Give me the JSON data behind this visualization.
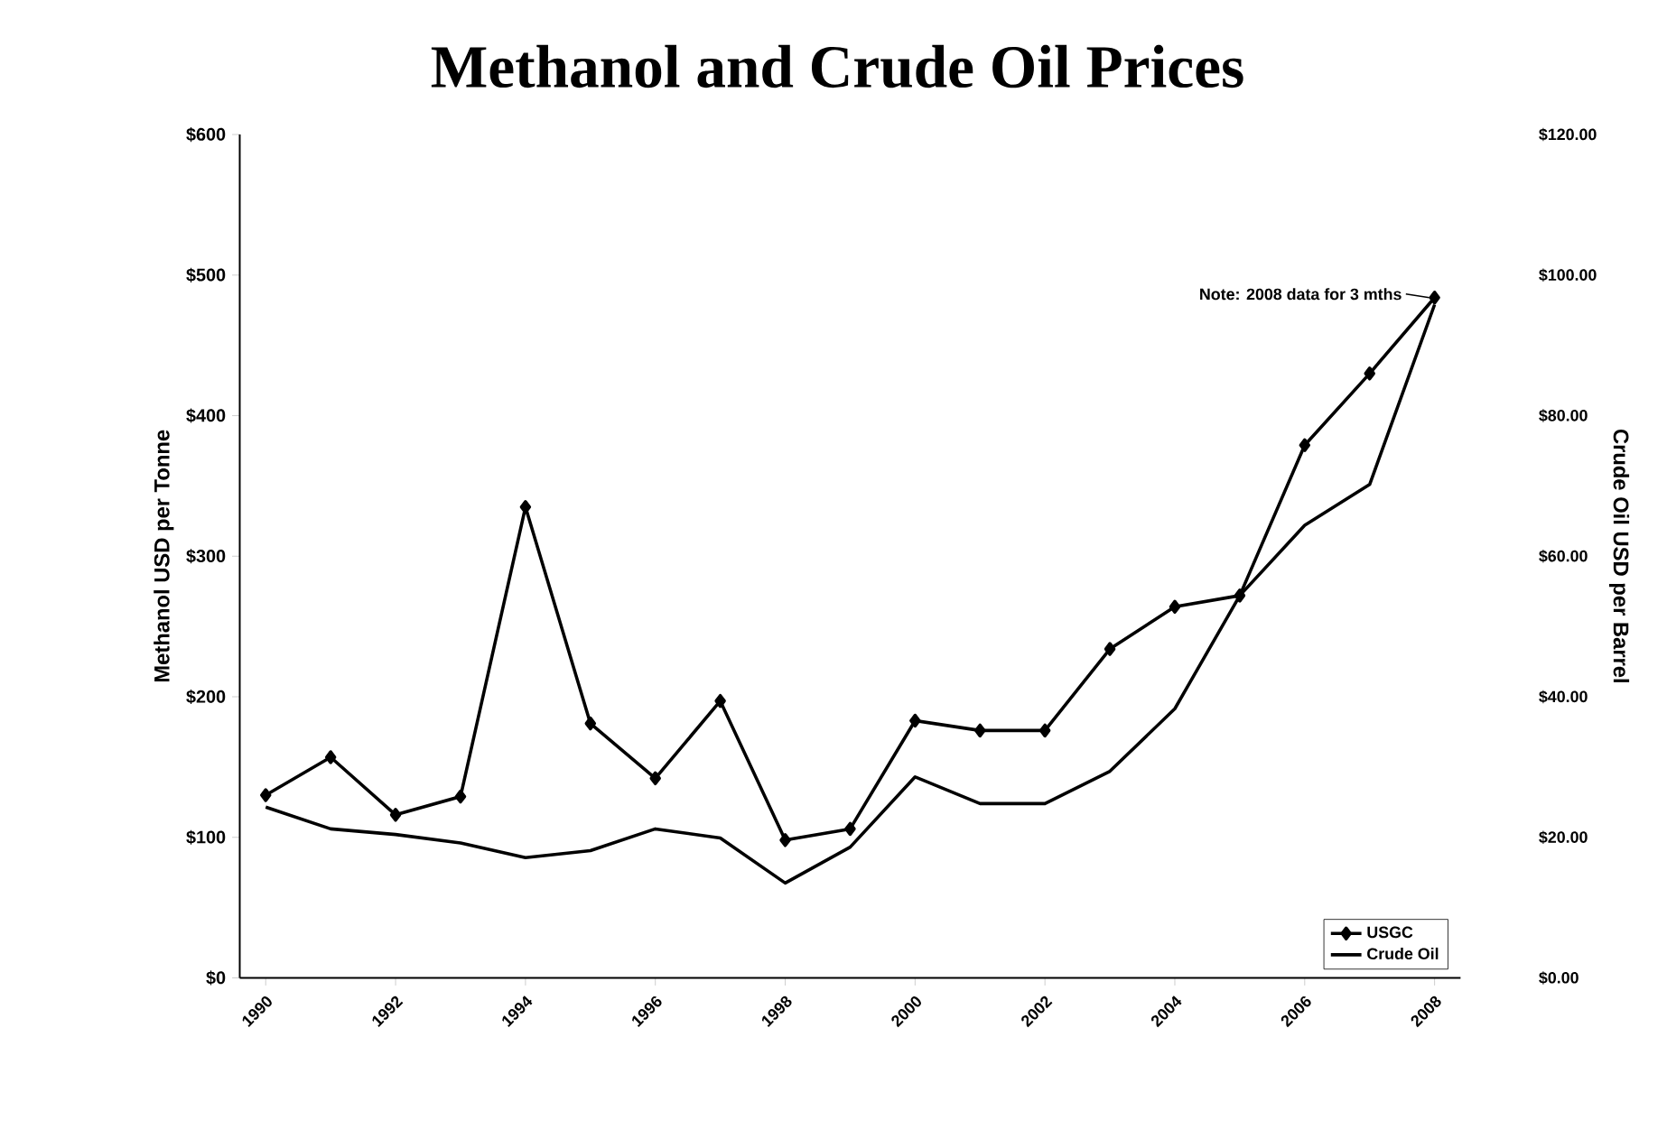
{
  "chart_data": {
    "type": "line",
    "title": "Methanol and Crude Oil Prices",
    "ylabel": "Methanol USD per Tonne",
    "y2label": "Crude Oil USD per Barrel",
    "x": [
      1990,
      1991,
      1992,
      1993,
      1994,
      1995,
      1996,
      1997,
      1998,
      1999,
      2000,
      2001,
      2002,
      2003,
      2004,
      2005,
      2006,
      2007,
      2008
    ],
    "series": [
      {
        "name": "USGC",
        "color": "#000000",
        "marker": "diamond",
        "values": [
          130,
          157,
          116,
          129,
          335,
          181,
          142,
          197,
          98,
          106,
          183,
          176,
          176,
          234,
          264,
          272,
          379,
          430,
          484
        ]
      },
      {
        "name": "Crude Oil",
        "color": "#000000",
        "axis": "y2",
        "values": [
          24.3,
          21.2,
          20.4,
          19.2,
          17.1,
          18.1,
          21.2,
          19.9,
          13.5,
          18.6,
          28.6,
          24.8,
          24.8,
          29.4,
          38.3,
          54.4,
          64.4,
          70.2,
          95.8
        ]
      }
    ],
    "xlim": [
      1989.6,
      2008.4
    ],
    "xticks": [
      1990,
      1992,
      1994,
      1996,
      1998,
      2000,
      2002,
      2004,
      2006,
      2008
    ],
    "ylim": [
      0,
      600
    ],
    "yticks": [
      {
        "value": 0,
        "label": "$0"
      },
      {
        "value": 100,
        "label": "$100"
      },
      {
        "value": 200,
        "label": "$200"
      },
      {
        "value": 300,
        "label": "$300"
      },
      {
        "value": 400,
        "label": "$400"
      },
      {
        "value": 500,
        "label": "$500"
      },
      {
        "value": 600,
        "label": "$600"
      }
    ],
    "y2lim": [
      0,
      120
    ],
    "y2ticks": [
      {
        "value": 0,
        "label": "$0.00"
      },
      {
        "value": 20,
        "label": "$20.00"
      },
      {
        "value": 40,
        "label": "$40.00"
      },
      {
        "value": 60,
        "label": "$60.00"
      },
      {
        "value": 80,
        "label": "$80.00"
      },
      {
        "value": 100,
        "label": "$100.00"
      },
      {
        "value": 120,
        "label": "$120.00"
      }
    ],
    "annotations": [
      {
        "text": "Note: 2008 data for 3 mths",
        "x": 2008,
        "y": 484
      }
    ],
    "legend": "bottom right",
    "grid": false,
    "line_style": "solid"
  }
}
